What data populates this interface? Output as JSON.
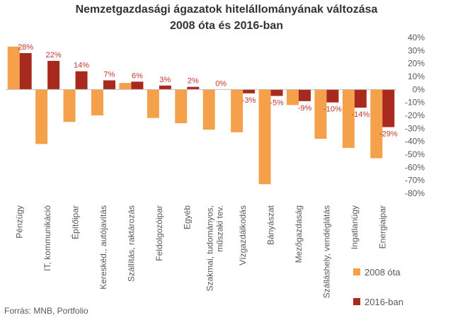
{
  "chart_data": {
    "type": "bar",
    "title": "Nemzetgazdasági ágazatok hitelállományának változása",
    "subtitle": "2008 óta és 2016-ban",
    "ylim": [
      -80,
      40
    ],
    "y_ticks": [
      40,
      30,
      20,
      10,
      0,
      -10,
      -20,
      -30,
      -40,
      -50,
      -60,
      -70,
      -80
    ],
    "y_tick_format": "%",
    "categories": [
      [
        "Pénzügy"
      ],
      [
        "IT, kommunikáció"
      ],
      [
        "Építőipar"
      ],
      [
        "Kereskéd., autójavítás"
      ],
      [
        "Szállítás, raktározás"
      ],
      [
        "Feldolgozóipar"
      ],
      [
        "Egyéb"
      ],
      [
        "Szakmai, tudományos,",
        "műszaki tev."
      ],
      [
        "Vízgazdálkodás"
      ],
      [
        "Bányászat"
      ],
      [
        "Mezőgazdaság"
      ],
      [
        "Szálláshely, vendéglátás"
      ],
      [
        "Ingatlanügy"
      ],
      [
        "Energiaipar"
      ]
    ],
    "series": [
      {
        "name": "2008 óta",
        "color": "#f5a04a",
        "values": [
          33,
          -42,
          -25,
          -20,
          5,
          -22,
          -26,
          -31,
          -33,
          -73,
          -12,
          -38,
          -45,
          -53
        ]
      },
      {
        "name": "2016-ban",
        "color": "#a8291e",
        "values": [
          28,
          22,
          14,
          7,
          6,
          3,
          2,
          0,
          -3,
          -5,
          -9,
          -10,
          -14,
          -29
        ],
        "labels": [
          "28%",
          "22%",
          "14%",
          "7%",
          "6%",
          "3%",
          "2%",
          "0%",
          "-3%",
          "-5%",
          "-9%",
          "-10%",
          "-14%",
          "-29%"
        ]
      }
    ],
    "legend_position": "bottom-right",
    "grid": false
  },
  "source": "Forrás: MNB, Portfolio"
}
